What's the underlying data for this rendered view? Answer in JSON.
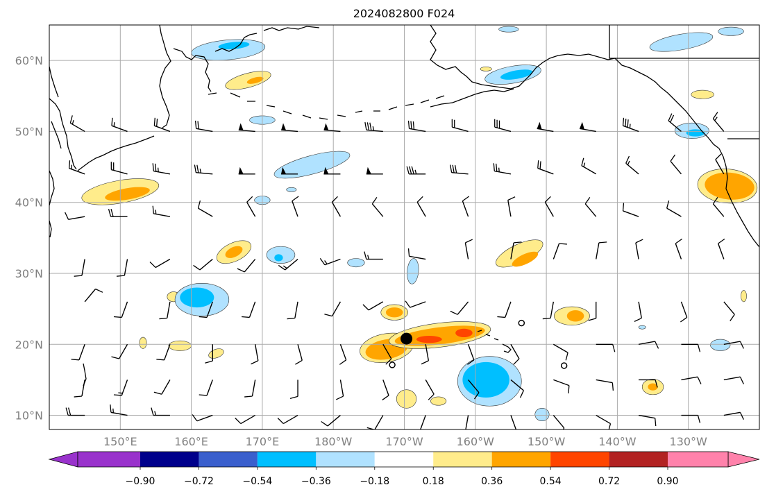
{
  "title": "2024082800 F024",
  "map": {
    "lon_range": [
      140,
      240
    ],
    "lat_range": [
      8,
      65
    ],
    "lon_ticks": [
      {
        "lon": 150,
        "label": "150°E"
      },
      {
        "lon": 160,
        "label": "160°E"
      },
      {
        "lon": 170,
        "label": "170°E"
      },
      {
        "lon": 180,
        "label": "180°W"
      },
      {
        "lon": 190,
        "label": "170°W"
      },
      {
        "lon": 200,
        "label": "160°W"
      },
      {
        "lon": 210,
        "label": "150°W"
      },
      {
        "lon": 220,
        "label": "140°W"
      },
      {
        "lon": 230,
        "label": "130°W"
      }
    ],
    "lat_ticks": [
      {
        "lat": 10,
        "label": "10°N"
      },
      {
        "lat": 20,
        "label": "20°N"
      },
      {
        "lat": 30,
        "label": "30°N"
      },
      {
        "lat": 40,
        "label": "40°N"
      },
      {
        "lat": 50,
        "label": "50°N"
      },
      {
        "lat": 60,
        "label": "60°N"
      }
    ],
    "grid": true,
    "marker": {
      "lon": 190.3,
      "lat": 20.8,
      "type": "filled-circle"
    },
    "open_circles": [
      {
        "lon": 188.3,
        "lat": 17.1
      },
      {
        "lon": 206.5,
        "lat": 23.0
      },
      {
        "lon": 212.5,
        "lat": 17.0
      }
    ]
  },
  "colorbar": {
    "colors": [
      "#9932cc",
      "#00008b",
      "#3a5fcd",
      "#00bfff",
      "#b0e2ff",
      "#ffffff",
      "#ffec8b",
      "#ffa500",
      "#ff4500",
      "#b22222",
      "#ff82ab"
    ],
    "tick_labels": [
      "−0.90",
      "−0.72",
      "−0.54",
      "−0.36",
      "−0.18",
      "0.18",
      "0.36",
      "0.54",
      "0.72",
      "0.90"
    ]
  },
  "fields": {
    "positive": [
      {
        "lon": 150,
        "lat": 41.5,
        "rx": 5.5,
        "ry": 1.6,
        "rot": -10,
        "level": 1
      },
      {
        "lon": 151,
        "lat": 41.2,
        "rx": 3.2,
        "ry": 0.8,
        "rot": -10,
        "level": 2
      },
      {
        "lon": 168,
        "lat": 57.2,
        "rx": 3.3,
        "ry": 1.0,
        "rot": -15,
        "level": 1
      },
      {
        "lon": 169,
        "lat": 57.2,
        "rx": 1.2,
        "ry": 0.4,
        "rot": -15,
        "level": 2
      },
      {
        "lon": 166,
        "lat": 33,
        "rx": 2.6,
        "ry": 1.3,
        "rot": -25,
        "level": 1
      },
      {
        "lon": 166,
        "lat": 33,
        "rx": 1.3,
        "ry": 0.7,
        "rot": -25,
        "level": 2
      },
      {
        "lon": 157.5,
        "lat": 26.7,
        "rx": 0.9,
        "ry": 0.7,
        "rot": 0,
        "level": 1
      },
      {
        "lon": 158.4,
        "lat": 19.8,
        "rx": 1.6,
        "ry": 0.7,
        "rot": 0,
        "level": 1
      },
      {
        "lon": 163.5,
        "lat": 18.7,
        "rx": 1.1,
        "ry": 0.6,
        "rot": -20,
        "level": 1
      },
      {
        "lon": 153.2,
        "lat": 20.2,
        "rx": 0.5,
        "ry": 0.8,
        "rot": 0,
        "level": 1
      },
      {
        "lon": 188.6,
        "lat": 24.5,
        "rx": 1.9,
        "ry": 1.1,
        "rot": 0,
        "level": 1
      },
      {
        "lon": 188.6,
        "lat": 24.5,
        "rx": 1.2,
        "ry": 0.7,
        "rot": 0,
        "level": 2
      },
      {
        "lon": 187.5,
        "lat": 19.5,
        "rx": 3.8,
        "ry": 2.0,
        "rot": -10,
        "level": 1
      },
      {
        "lon": 187.5,
        "lat": 19.3,
        "rx": 3.0,
        "ry": 1.4,
        "rot": -10,
        "level": 2
      },
      {
        "lon": 195,
        "lat": 21.3,
        "rx": 7.2,
        "ry": 1.7,
        "rot": -7,
        "level": 1
      },
      {
        "lon": 195,
        "lat": 21.2,
        "rx": 6.4,
        "ry": 1.2,
        "rot": -7,
        "level": 2
      },
      {
        "lon": 193.5,
        "lat": 20.7,
        "rx": 1.8,
        "ry": 0.5,
        "rot": 0,
        "level": 3
      },
      {
        "lon": 198.4,
        "lat": 21.6,
        "rx": 1.2,
        "ry": 0.6,
        "rot": 0,
        "level": 3
      },
      {
        "lon": 190.3,
        "lat": 12.3,
        "rx": 1.4,
        "ry": 1.3,
        "rot": 0,
        "level": 1
      },
      {
        "lon": 194.8,
        "lat": 12.0,
        "rx": 1.1,
        "ry": 0.6,
        "rot": 0,
        "level": 1
      },
      {
        "lon": 206.2,
        "lat": 32.8,
        "rx": 3.6,
        "ry": 1.3,
        "rot": -25,
        "level": 1
      },
      {
        "lon": 207.0,
        "lat": 32.0,
        "rx": 2.0,
        "ry": 0.7,
        "rot": -25,
        "level": 2
      },
      {
        "lon": 213.6,
        "lat": 24.0,
        "rx": 2.5,
        "ry": 1.3,
        "rot": 0,
        "level": 1
      },
      {
        "lon": 214.1,
        "lat": 24.0,
        "rx": 1.2,
        "ry": 0.8,
        "rot": 0,
        "level": 2
      },
      {
        "lon": 235.5,
        "lat": 42.3,
        "rx": 4.2,
        "ry": 2.4,
        "rot": 5,
        "level": 1
      },
      {
        "lon": 235.8,
        "lat": 42.3,
        "rx": 3.5,
        "ry": 1.9,
        "rot": 5,
        "level": 2
      },
      {
        "lon": 225,
        "lat": 14.0,
        "rx": 1.5,
        "ry": 1.1,
        "rot": 0,
        "level": 1
      },
      {
        "lon": 225,
        "lat": 14.0,
        "rx": 0.7,
        "ry": 0.5,
        "rot": 0,
        "level": 2
      },
      {
        "lon": 201.5,
        "lat": 58.8,
        "rx": 0.8,
        "ry": 0.3,
        "rot": 0,
        "level": 1
      },
      {
        "lon": 232,
        "lat": 55.2,
        "rx": 1.6,
        "ry": 0.6,
        "rot": 0,
        "level": 1
      },
      {
        "lon": 237.8,
        "lat": 26.8,
        "rx": 0.4,
        "ry": 0.8,
        "rot": 0,
        "level": 1
      }
    ],
    "negative": [
      {
        "lon": 165.2,
        "lat": 61.5,
        "rx": 5.2,
        "ry": 1.4,
        "rot": -5,
        "level": 1
      },
      {
        "lon": 166,
        "lat": 62.1,
        "rx": 2.2,
        "ry": 0.5,
        "rot": -5,
        "level": 2
      },
      {
        "lon": 177,
        "lat": 45.3,
        "rx": 5.5,
        "ry": 1.3,
        "rot": -15,
        "level": 1
      },
      {
        "lon": 170,
        "lat": 51.6,
        "rx": 1.8,
        "ry": 0.6,
        "rot": 0,
        "level": 1
      },
      {
        "lon": 170,
        "lat": 40.3,
        "rx": 1.1,
        "ry": 0.6,
        "rot": 0,
        "level": 1
      },
      {
        "lon": 172.6,
        "lat": 32.6,
        "rx": 2.0,
        "ry": 1.2,
        "rot": 0,
        "level": 1
      },
      {
        "lon": 172.3,
        "lat": 32.2,
        "rx": 0.6,
        "ry": 0.5,
        "rot": 0,
        "level": 2
      },
      {
        "lon": 161.5,
        "lat": 26.3,
        "rx": 3.8,
        "ry": 2.3,
        "rot": 0,
        "level": 1
      },
      {
        "lon": 160.8,
        "lat": 26.6,
        "rx": 2.4,
        "ry": 1.4,
        "rot": 0,
        "level": 2
      },
      {
        "lon": 183.2,
        "lat": 31.5,
        "rx": 1.2,
        "ry": 0.6,
        "rot": 0,
        "level": 1
      },
      {
        "lon": 191.2,
        "lat": 30.3,
        "rx": 0.8,
        "ry": 1.8,
        "rot": 5,
        "level": 1
      },
      {
        "lon": 202,
        "lat": 14.8,
        "rx": 4.5,
        "ry": 3.5,
        "rot": 0,
        "level": 1
      },
      {
        "lon": 201.5,
        "lat": 15.0,
        "rx": 3.3,
        "ry": 2.5,
        "rot": 0,
        "level": 2
      },
      {
        "lon": 209.4,
        "lat": 10.1,
        "rx": 1.0,
        "ry": 0.9,
        "rot": 0,
        "level": 1
      },
      {
        "lon": 205.3,
        "lat": 58.0,
        "rx": 4.0,
        "ry": 1.2,
        "rot": -10,
        "level": 1
      },
      {
        "lon": 205.8,
        "lat": 58.0,
        "rx": 2.3,
        "ry": 0.6,
        "rot": -10,
        "level": 2
      },
      {
        "lon": 229.0,
        "lat": 62.6,
        "rx": 4.5,
        "ry": 1.1,
        "rot": -10,
        "level": 1
      },
      {
        "lon": 236.0,
        "lat": 64.1,
        "rx": 1.8,
        "ry": 0.6,
        "rot": 0,
        "level": 1
      },
      {
        "lon": 230.5,
        "lat": 50.1,
        "rx": 2.4,
        "ry": 1.1,
        "rot": 0,
        "level": 1
      },
      {
        "lon": 231.0,
        "lat": 49.8,
        "rx": 1.3,
        "ry": 0.5,
        "rot": 0,
        "level": 2
      },
      {
        "lon": 234.5,
        "lat": 19.9,
        "rx": 1.4,
        "ry": 0.8,
        "rot": 0,
        "level": 1
      },
      {
        "lon": 174.1,
        "lat": 41.8,
        "rx": 0.7,
        "ry": 0.3,
        "rot": 0,
        "level": 1
      },
      {
        "lon": 204.7,
        "lat": 64.4,
        "rx": 1.4,
        "ry": 0.4,
        "rot": 0,
        "level": 1
      },
      {
        "lon": 223.5,
        "lat": 22.4,
        "rx": 0.5,
        "ry": 0.25,
        "rot": 0,
        "level": 1
      }
    ]
  },
  "barbs": [
    {
      "lon": 145,
      "lat": 50,
      "dir": 300,
      "spd": 15
    },
    {
      "lon": 151,
      "lat": 50,
      "dir": 290,
      "spd": 15
    },
    {
      "lon": 157,
      "lat": 50,
      "dir": 290,
      "spd": 20
    },
    {
      "lon": 163,
      "lat": 50,
      "dir": 280,
      "spd": 20
    },
    {
      "lon": 169,
      "lat": 50,
      "dir": 275,
      "spd": 50
    },
    {
      "lon": 175,
      "lat": 50,
      "dir": 275,
      "spd": 50
    },
    {
      "lon": 181,
      "lat": 50,
      "dir": 275,
      "spd": 50
    },
    {
      "lon": 187,
      "lat": 50,
      "dir": 275,
      "spd": 35
    },
    {
      "lon": 193,
      "lat": 50,
      "dir": 280,
      "spd": 30
    },
    {
      "lon": 199,
      "lat": 50,
      "dir": 285,
      "spd": 20
    },
    {
      "lon": 205,
      "lat": 50,
      "dir": 285,
      "spd": 30
    },
    {
      "lon": 211,
      "lat": 50,
      "dir": 280,
      "spd": 50
    },
    {
      "lon": 217,
      "lat": 50,
      "dir": 280,
      "spd": 50
    },
    {
      "lon": 223,
      "lat": 50,
      "dir": 290,
      "spd": 35
    },
    {
      "lon": 229,
      "lat": 50,
      "dir": 310,
      "spd": 20
    },
    {
      "lon": 235,
      "lat": 50,
      "dir": 320,
      "spd": 15
    },
    {
      "lon": 145,
      "lat": 44,
      "dir": 290,
      "spd": 15
    },
    {
      "lon": 151,
      "lat": 44,
      "dir": 285,
      "spd": 20
    },
    {
      "lon": 157,
      "lat": 44,
      "dir": 280,
      "spd": 25
    },
    {
      "lon": 163,
      "lat": 44,
      "dir": 275,
      "spd": 25
    },
    {
      "lon": 169,
      "lat": 44,
      "dir": 270,
      "spd": 50
    },
    {
      "lon": 175,
      "lat": 44,
      "dir": 270,
      "spd": 50
    },
    {
      "lon": 181,
      "lat": 44,
      "dir": 270,
      "spd": 50
    },
    {
      "lon": 187,
      "lat": 44,
      "dir": 270,
      "spd": 50
    },
    {
      "lon": 193,
      "lat": 44,
      "dir": 270,
      "spd": 35
    },
    {
      "lon": 199,
      "lat": 44,
      "dir": 275,
      "spd": 30
    },
    {
      "lon": 205,
      "lat": 44,
      "dir": 280,
      "spd": 25
    },
    {
      "lon": 211,
      "lat": 44,
      "dir": 290,
      "spd": 20
    },
    {
      "lon": 217,
      "lat": 44,
      "dir": 300,
      "spd": 15
    },
    {
      "lon": 223,
      "lat": 44,
      "dir": 310,
      "spd": 15
    },
    {
      "lon": 229,
      "lat": 44,
      "dir": 320,
      "spd": 10
    },
    {
      "lon": 235,
      "lat": 44,
      "dir": 330,
      "spd": 10
    },
    {
      "lon": 145,
      "lat": 38,
      "dir": 260,
      "spd": 10
    },
    {
      "lon": 151,
      "lat": 38,
      "dir": 270,
      "spd": 20
    },
    {
      "lon": 157,
      "lat": 38,
      "dir": 280,
      "spd": 15
    },
    {
      "lon": 163,
      "lat": 38,
      "dir": 300,
      "spd": 10
    },
    {
      "lon": 169,
      "lat": 38,
      "dir": 330,
      "spd": 10
    },
    {
      "lon": 175,
      "lat": 38,
      "dir": 340,
      "spd": 10
    },
    {
      "lon": 181,
      "lat": 38,
      "dir": 330,
      "spd": 10
    },
    {
      "lon": 187,
      "lat": 38,
      "dir": 320,
      "spd": 10
    },
    {
      "lon": 193,
      "lat": 38,
      "dir": 330,
      "spd": 10
    },
    {
      "lon": 199,
      "lat": 38,
      "dir": 340,
      "spd": 10
    },
    {
      "lon": 205,
      "lat": 38,
      "dir": 350,
      "spd": 10
    },
    {
      "lon": 211,
      "lat": 38,
      "dir": 330,
      "spd": 10
    },
    {
      "lon": 217,
      "lat": 38,
      "dir": 320,
      "spd": 10
    },
    {
      "lon": 223,
      "lat": 38,
      "dir": 290,
      "spd": 10
    },
    {
      "lon": 229,
      "lat": 38,
      "dir": 300,
      "spd": 10
    },
    {
      "lon": 235,
      "lat": 38,
      "dir": 320,
      "spd": 10
    },
    {
      "lon": 145,
      "lat": 32,
      "dir": 190,
      "spd": 10
    },
    {
      "lon": 151,
      "lat": 32,
      "dir": 190,
      "spd": 10
    },
    {
      "lon": 157,
      "lat": 32,
      "dir": 240,
      "spd": 10
    },
    {
      "lon": 163,
      "lat": 32,
      "dir": 230,
      "spd": 10
    },
    {
      "lon": 169,
      "lat": 32,
      "dir": 220,
      "spd": 10
    },
    {
      "lon": 175,
      "lat": 32,
      "dir": 230,
      "spd": 15
    },
    {
      "lon": 181,
      "lat": 32,
      "dir": 250,
      "spd": 15
    },
    {
      "lon": 187,
      "lat": 32,
      "dir": 270,
      "spd": 15
    },
    {
      "lon": 193,
      "lat": 32,
      "dir": 280,
      "spd": 10
    },
    {
      "lon": 199,
      "lat": 32,
      "dir": 350,
      "spd": 10
    },
    {
      "lon": 205,
      "lat": 32,
      "dir": 10,
      "spd": 10
    },
    {
      "lon": 211,
      "lat": 32,
      "dir": 20,
      "spd": 10
    },
    {
      "lon": 217,
      "lat": 32,
      "dir": 10,
      "spd": 10
    },
    {
      "lon": 223,
      "lat": 32,
      "dir": 350,
      "spd": 10
    },
    {
      "lon": 229,
      "lat": 32,
      "dir": 340,
      "spd": 10
    },
    {
      "lon": 235,
      "lat": 32,
      "dir": 340,
      "spd": 10
    },
    {
      "lon": 145,
      "lat": 26,
      "dir": 40,
      "spd": 10
    },
    {
      "lon": 151,
      "lat": 26,
      "dir": 200,
      "spd": 10
    },
    {
      "lon": 157,
      "lat": 26,
      "dir": 190,
      "spd": 10
    },
    {
      "lon": 163,
      "lat": 26,
      "dir": 200,
      "spd": 10
    },
    {
      "lon": 169,
      "lat": 26,
      "dir": 200,
      "spd": 10
    },
    {
      "lon": 175,
      "lat": 26,
      "dir": 190,
      "spd": 10
    },
    {
      "lon": 181,
      "lat": 26,
      "dir": 210,
      "spd": 10
    },
    {
      "lon": 187,
      "lat": 26,
      "dir": 240,
      "spd": 10
    },
    {
      "lon": 193,
      "lat": 26,
      "dir": 250,
      "spd": 10
    },
    {
      "lon": 199,
      "lat": 26,
      "dir": 220,
      "spd": 10
    },
    {
      "lon": 205,
      "lat": 26,
      "dir": 200,
      "spd": 10
    },
    {
      "lon": 211,
      "lat": 26,
      "dir": 190,
      "spd": 10
    },
    {
      "lon": 217,
      "lat": 26,
      "dir": 180,
      "spd": 10
    },
    {
      "lon": 223,
      "lat": 26,
      "dir": 170,
      "spd": 10
    },
    {
      "lon": 229,
      "lat": 26,
      "dir": 160,
      "spd": 10
    },
    {
      "lon": 235,
      "lat": 26,
      "dir": 140,
      "spd": 10
    },
    {
      "lon": 145,
      "lat": 20,
      "dir": 200,
      "spd": 10
    },
    {
      "lon": 151,
      "lat": 20,
      "dir": 210,
      "spd": 10
    },
    {
      "lon": 157,
      "lat": 20,
      "dir": 200,
      "spd": 10
    },
    {
      "lon": 163,
      "lat": 20,
      "dir": 180,
      "spd": 10
    },
    {
      "lon": 169,
      "lat": 20,
      "dir": 170,
      "spd": 10
    },
    {
      "lon": 175,
      "lat": 20,
      "dir": 165,
      "spd": 10
    },
    {
      "lon": 181,
      "lat": 20,
      "dir": 160,
      "spd": 10
    },
    {
      "lon": 187,
      "lat": 20,
      "dir": 150,
      "spd": 10
    },
    {
      "lon": 193,
      "lat": 20,
      "dir": 170,
      "spd": 10
    },
    {
      "lon": 199,
      "lat": 20,
      "dir": 160,
      "spd": 10
    },
    {
      "lon": 205,
      "lat": 20,
      "dir": 150,
      "spd": 10
    },
    {
      "lon": 211,
      "lat": 20,
      "dir": 120,
      "spd": 10
    },
    {
      "lon": 217,
      "lat": 20,
      "dir": 90,
      "spd": 10
    },
    {
      "lon": 223,
      "lat": 20,
      "dir": 80,
      "spd": 10
    },
    {
      "lon": 229,
      "lat": 20,
      "dir": 90,
      "spd": 10
    },
    {
      "lon": 235,
      "lat": 20,
      "dir": 80,
      "spd": 10
    },
    {
      "lon": 145,
      "lat": 15,
      "dir": 190,
      "spd": 10
    },
    {
      "lon": 151,
      "lat": 15,
      "dir": 200,
      "spd": 15
    },
    {
      "lon": 157,
      "lat": 15,
      "dir": 210,
      "spd": 10
    },
    {
      "lon": 163,
      "lat": 15,
      "dir": 200,
      "spd": 10
    },
    {
      "lon": 169,
      "lat": 15,
      "dir": 190,
      "spd": 10
    },
    {
      "lon": 175,
      "lat": 15,
      "dir": 180,
      "spd": 10
    },
    {
      "lon": 181,
      "lat": 15,
      "dir": 170,
      "spd": 10
    },
    {
      "lon": 187,
      "lat": 15,
      "dir": 160,
      "spd": 10
    },
    {
      "lon": 193,
      "lat": 15,
      "dir": 150,
      "spd": 10
    },
    {
      "lon": 199,
      "lat": 15,
      "dir": 140,
      "spd": 10
    },
    {
      "lon": 205,
      "lat": 15,
      "dir": 130,
      "spd": 10
    },
    {
      "lon": 211,
      "lat": 15,
      "dir": 110,
      "spd": 10
    },
    {
      "lon": 217,
      "lat": 15,
      "dir": 100,
      "spd": 10
    },
    {
      "lon": 223,
      "lat": 15,
      "dir": 90,
      "spd": 10
    },
    {
      "lon": 229,
      "lat": 15,
      "dir": 80,
      "spd": 10
    },
    {
      "lon": 235,
      "lat": 15,
      "dir": 80,
      "spd": 10
    },
    {
      "lon": 145,
      "lat": 10,
      "dir": 270,
      "spd": 20
    },
    {
      "lon": 151,
      "lat": 10,
      "dir": 280,
      "spd": 15
    },
    {
      "lon": 157,
      "lat": 10,
      "dir": 270,
      "spd": 15
    },
    {
      "lon": 163,
      "lat": 10,
      "dir": 250,
      "spd": 10
    },
    {
      "lon": 169,
      "lat": 10,
      "dir": 240,
      "spd": 10
    },
    {
      "lon": 175,
      "lat": 10,
      "dir": 240,
      "spd": 10
    },
    {
      "lon": 181,
      "lat": 10,
      "dir": 230,
      "spd": 10
    },
    {
      "lon": 187,
      "lat": 10,
      "dir": 210,
      "spd": 10
    },
    {
      "lon": 193,
      "lat": 10,
      "dir": 200,
      "spd": 10
    },
    {
      "lon": 199,
      "lat": 10,
      "dir": 190,
      "spd": 10
    },
    {
      "lon": 205,
      "lat": 10,
      "dir": 160,
      "spd": 10
    },
    {
      "lon": 211,
      "lat": 10,
      "dir": 140,
      "spd": 10
    },
    {
      "lon": 217,
      "lat": 10,
      "dir": 120,
      "spd": 10
    },
    {
      "lon": 223,
      "lat": 10,
      "dir": 100,
      "spd": 10
    },
    {
      "lon": 229,
      "lat": 10,
      "dir": 90,
      "spd": 10
    },
    {
      "lon": 235,
      "lat": 10,
      "dir": 80,
      "spd": 10
    }
  ]
}
